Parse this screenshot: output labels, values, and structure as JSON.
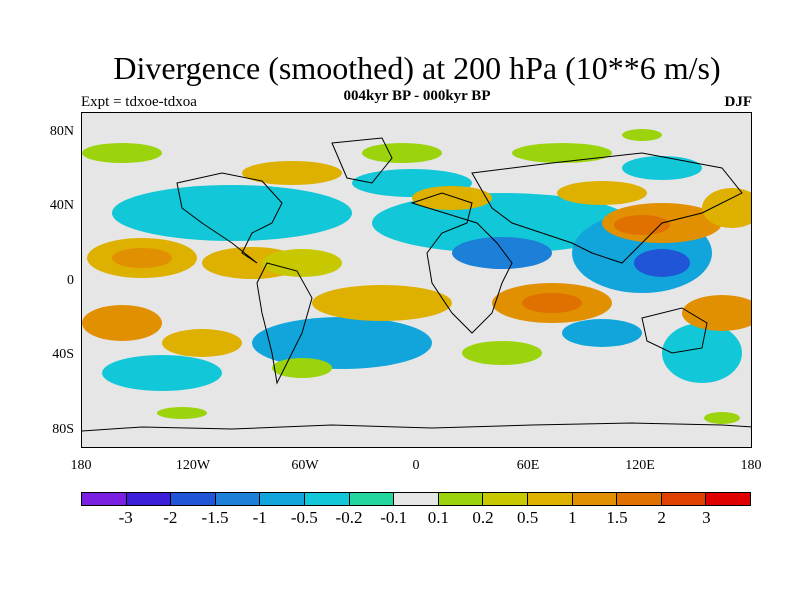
{
  "title": "Divergence (smoothed) at 200 hPa (10**6 m/s)",
  "subtitle": "004kyr BP - 000kyr BP",
  "experiment": "Expt = tdxoe-tdxoa",
  "season": "DJF",
  "lat_labels": [
    "80N",
    "40N",
    "0",
    "40S",
    "80S"
  ],
  "lon_labels": [
    "180",
    "120W",
    "60W",
    "0",
    "60E",
    "120E",
    "180"
  ],
  "colorbar": {
    "labels": [
      "-3",
      "-2",
      "-1.5",
      "-1",
      "-0.5",
      "-0.2",
      "-0.1",
      "0.1",
      "0.2",
      "0.5",
      "1",
      "1.5",
      "2",
      "3"
    ],
    "colors": [
      "#7b20e0",
      "#3b1ed8",
      "#1f55d6",
      "#1c7fd8",
      "#11a5dc",
      "#12c8d8",
      "#22d6a0",
      "#e6e6e6",
      "#9bd40c",
      "#c8c800",
      "#deb000",
      "#e09000",
      "#e07000",
      "#e04000",
      "#e00000"
    ]
  },
  "map": {
    "background": "#e6e6e6",
    "coastline_color": "#000000",
    "field_note_colors": {
      "positive_strong": "#e07000",
      "positive": "#deb000",
      "positive_weak": "#9bd40c",
      "negative_weak": "#22d6a0",
      "negative": "#11a5dc",
      "negative_strong": "#1f55d6"
    }
  }
}
